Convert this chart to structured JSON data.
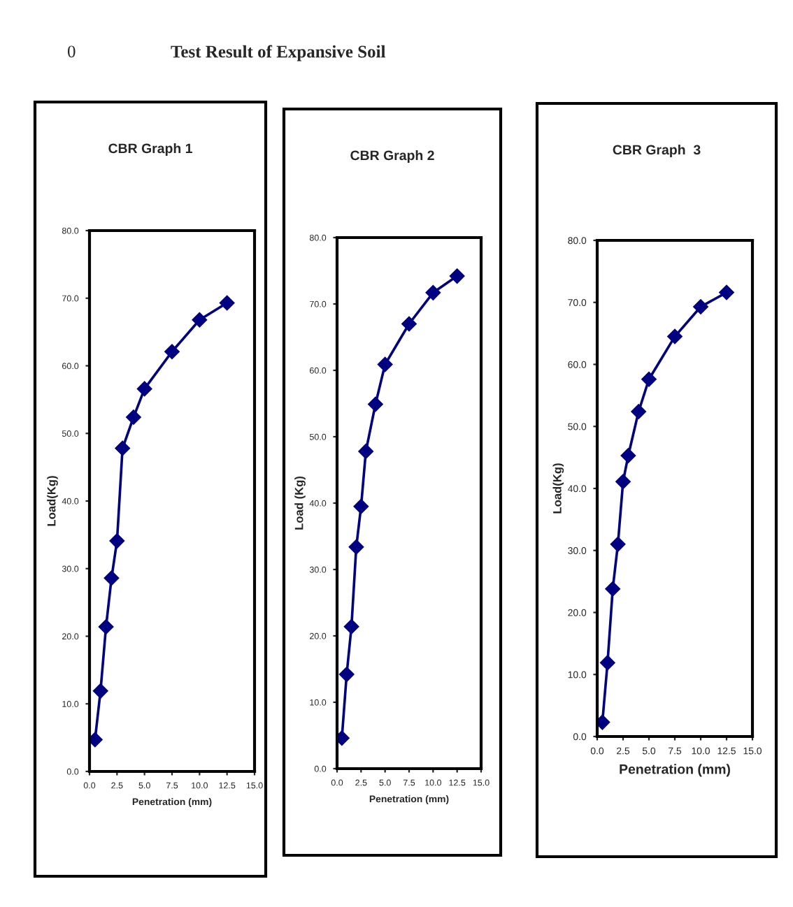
{
  "chart_data": [
    {
      "type": "line",
      "title": "CBR Graph 1",
      "xlabel": "Penetration (mm)",
      "ylabel": "Load(Kg)",
      "annotations": [
        "0",
        "Test Result of Expansive Soil"
      ],
      "x": [
        0.5,
        1,
        1.5,
        2,
        2.5,
        3,
        4,
        5,
        7.5,
        10,
        12.5
      ],
      "series": [
        {
          "color": "#000080",
          "values": [
            4.7,
            11.9,
            21.4,
            28.6,
            34.1,
            47.8,
            52.4,
            56.6,
            62.1,
            66.8,
            69.3
          ]
        }
      ],
      "xlim": [
        0,
        15
      ],
      "xticks": [
        {
          "value": 0,
          "label": "0.0"
        },
        {
          "value": 2.5,
          "label": "2.5"
        },
        {
          "value": 5,
          "label": "5.0"
        },
        {
          "value": 7.5,
          "label": "7.5"
        },
        {
          "value": 10,
          "label": "10.0"
        },
        {
          "value": 12.5,
          "label": "12.5"
        },
        {
          "value": 15,
          "label": "15.0"
        }
      ],
      "ylim": [
        0,
        80
      ],
      "yticks": [
        {
          "value": 0,
          "label": "0.0"
        },
        {
          "value": 10,
          "label": "10.0"
        },
        {
          "value": 20,
          "label": "20.0"
        },
        {
          "value": 30,
          "label": "30.0"
        },
        {
          "value": 40,
          "label": "40.0"
        },
        {
          "value": 50,
          "label": "50.0"
        },
        {
          "value": 60,
          "label": "60.0"
        },
        {
          "value": 70,
          "label": "70.0"
        },
        {
          "value": 80,
          "label": "80.0"
        }
      ],
      "grid": false,
      "marker": "diamond",
      "line_style": "solid"
    },
    {
      "type": "line",
      "title": "CBR Graph 2",
      "xlabel": "Penetration (mm)",
      "ylabel": "Load (Kg)",
      "x": [
        0.5,
        1,
        1.5,
        2,
        2.5,
        3,
        4,
        5,
        7.5,
        10,
        12.5
      ],
      "series": [
        {
          "color": "#000080",
          "values": [
            4.6,
            14.2,
            21.4,
            33.4,
            39.5,
            47.8,
            54.9,
            60.9,
            67.0,
            71.7,
            74.2
          ]
        }
      ],
      "xlim": [
        0,
        15
      ],
      "xticks": [
        {
          "value": 0,
          "label": "0.0"
        },
        {
          "value": 2.5,
          "label": "2.5"
        },
        {
          "value": 5,
          "label": "5.0"
        },
        {
          "value": 7.5,
          "label": "7.5"
        },
        {
          "value": 10,
          "label": "10.0"
        },
        {
          "value": 12.5,
          "label": "12.5"
        },
        {
          "value": 15,
          "label": "15.0"
        }
      ],
      "ylim": [
        0,
        80
      ],
      "yticks": [
        {
          "value": 0,
          "label": "0.0"
        },
        {
          "value": 10,
          "label": "10.0"
        },
        {
          "value": 20,
          "label": "20.0"
        },
        {
          "value": 30,
          "label": "30.0"
        },
        {
          "value": 40,
          "label": "40.0"
        },
        {
          "value": 50,
          "label": "50.0"
        },
        {
          "value": 60,
          "label": "60.0"
        },
        {
          "value": 70,
          "label": "70.0"
        },
        {
          "value": 80,
          "label": "80.0"
        }
      ],
      "grid": false,
      "marker": "diamond",
      "line_style": "solid"
    },
    {
      "type": "line",
      "title": "CBR Graph  3",
      "xlabel": "Penetration (mm)",
      "ylabel": "Load(Kg)",
      "x": [
        0.5,
        1,
        1.5,
        2,
        2.5,
        3,
        4,
        5,
        7.5,
        10,
        12.5
      ],
      "series": [
        {
          "color": "#000080",
          "values": [
            2.3,
            11.9,
            23.8,
            31.0,
            41.1,
            45.3,
            52.4,
            57.6,
            64.5,
            69.3,
            71.6
          ]
        }
      ],
      "xlim": [
        0,
        15
      ],
      "xticks": [
        {
          "value": 0,
          "label": "0.0"
        },
        {
          "value": 2.5,
          "label": "2.5"
        },
        {
          "value": 5,
          "label": "5.0"
        },
        {
          "value": 7.5,
          "label": "7.5"
        },
        {
          "value": 10,
          "label": "10.0"
        },
        {
          "value": 12.5,
          "label": "12.5"
        },
        {
          "value": 15,
          "label": "15.0"
        }
      ],
      "ylim": [
        0,
        80
      ],
      "yticks": [
        {
          "value": 0,
          "label": "0.0"
        },
        {
          "value": 10,
          "label": "10.0"
        },
        {
          "value": 20,
          "label": "20.0"
        },
        {
          "value": 30,
          "label": "30.0"
        },
        {
          "value": 40,
          "label": "40.0"
        },
        {
          "value": 50,
          "label": "50.0"
        },
        {
          "value": 60,
          "label": "60.0"
        },
        {
          "value": 70,
          "label": "70.0"
        },
        {
          "value": 80,
          "label": "80.0"
        }
      ],
      "grid": false,
      "marker": "diamond",
      "line_style": "solid"
    }
  ]
}
